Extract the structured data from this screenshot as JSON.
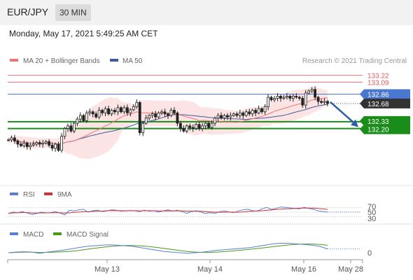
{
  "header": {
    "symbol": "EUR/JPY",
    "timeframe": "30 MIN"
  },
  "date_line": "Monday, May 17, 2021 5:49:25 AM CET",
  "copyright": "Research © 2021 Trading Central",
  "colors": {
    "support": "#1a8c1a",
    "resistance": "#e05a5a",
    "pivot": "#4a78d0",
    "ma20": "#e87878",
    "ma50": "#3d5a9c",
    "rsi": "#5a7fd6",
    "rsi_ma": "#cc3333",
    "macd": "#5a7fd6",
    "macd_signal": "#4a9a1a",
    "forecast_arrow": "#2a5fa8",
    "current_price_bg": "#333333"
  },
  "chart_data": [
    {
      "type": "candlestick",
      "title": "",
      "legend": [
        "MA 20 + Bollinger Bands",
        "MA 50"
      ],
      "legend_position": "top-left",
      "ylim": [
        131.2,
        133.35
      ],
      "price_levels": [
        {
          "label": "133.22",
          "value": 133.22,
          "kind": "resistance"
        },
        {
          "label": "133.09",
          "value": 133.09,
          "kind": "resistance"
        },
        {
          "label": "132.86",
          "value": 132.86,
          "kind": "pivot"
        },
        {
          "label": "132.68",
          "value": 132.68,
          "kind": "current"
        },
        {
          "label": "132.33",
          "value": 132.33,
          "kind": "support"
        },
        {
          "label": "132.20",
          "value": 132.2,
          "kind": "support"
        }
      ],
      "close_series": [
        131.98,
        132.02,
        131.96,
        131.9,
        131.87,
        131.92,
        131.85,
        131.88,
        131.9,
        131.93,
        131.9,
        131.92,
        131.95,
        131.88,
        131.82,
        131.9,
        131.78,
        132.05,
        132.2,
        132.25,
        132.15,
        132.3,
        132.38,
        132.45,
        132.35,
        132.5,
        132.52,
        132.48,
        132.42,
        132.55,
        132.5,
        132.58,
        132.48,
        132.55,
        132.52,
        132.6,
        132.52,
        132.6,
        132.5,
        132.56,
        132.62,
        132.7,
        132.12,
        132.3,
        132.4,
        132.45,
        132.48,
        132.42,
        132.5,
        132.52,
        132.48,
        132.45,
        132.55,
        132.5,
        132.3,
        132.2,
        132.15,
        132.25,
        132.22,
        132.2,
        132.28,
        132.2,
        132.25,
        132.3,
        132.22,
        132.3,
        132.4,
        132.45,
        132.4,
        132.45,
        132.42,
        132.45,
        132.48,
        132.45,
        132.5,
        132.45,
        132.52,
        132.48,
        132.55,
        132.5,
        132.58,
        132.52,
        132.62,
        132.8,
        132.75,
        132.78,
        132.82,
        132.78,
        132.8,
        132.82,
        132.78,
        132.82,
        132.8,
        132.78,
        132.65,
        132.88,
        132.92,
        132.95,
        132.8,
        132.72,
        132.7,
        132.72,
        132.68
      ],
      "forecast": {
        "from": 132.68,
        "to": 132.2,
        "direction": "down"
      },
      "x_ticks": [
        "May 13",
        "May 14",
        "May 16",
        "May 28"
      ]
    },
    {
      "type": "line",
      "title": "",
      "legend": [
        "RSI",
        "9MA"
      ],
      "y_ticks": [
        "70",
        "50",
        "30"
      ],
      "rsi": [
        44,
        50,
        48,
        52,
        46,
        40,
        44,
        50,
        47,
        48,
        52,
        46,
        38,
        58,
        55,
        60,
        62,
        50,
        56,
        58,
        52,
        55,
        60,
        58,
        54,
        56,
        57,
        55,
        52,
        58,
        54,
        56,
        50,
        55,
        60,
        54,
        58,
        52,
        45,
        52,
        56,
        50,
        44,
        48,
        45,
        52,
        55,
        50,
        48,
        55,
        60,
        62,
        56,
        54,
        64,
        70,
        62,
        66,
        72,
        70,
        68,
        66,
        64,
        70,
        66,
        62,
        55,
        52,
        50
      ]
    },
    {
      "type": "line",
      "title": "",
      "legend": [
        "MACD",
        "MACD Signal"
      ],
      "y_ticks": [
        "0"
      ],
      "macd": [
        0.0,
        0.02,
        0.03,
        0.02,
        -0.02,
        0.02,
        0.05,
        0.08,
        0.12,
        0.16,
        0.2,
        0.22,
        0.24,
        0.25,
        0.24,
        0.22,
        0.2,
        0.16,
        0.12,
        0.08,
        0.04,
        0.02,
        0.0,
        -0.02,
        0.0,
        0.02,
        0.05,
        0.08,
        0.1,
        0.12,
        0.14,
        0.16,
        0.2,
        0.24,
        0.28,
        0.3,
        0.3,
        0.28,
        0.26,
        0.24,
        0.2,
        0.12
      ]
    }
  ]
}
